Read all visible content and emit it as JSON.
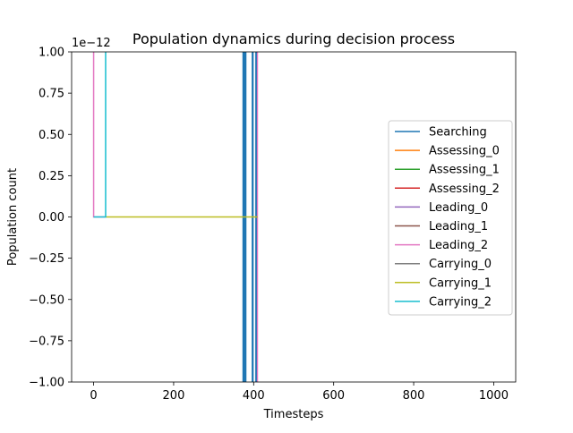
{
  "chart_data": {
    "type": "line",
    "title": "Population dynamics during decision process",
    "xlabel": "Timesteps",
    "ylabel": "Population count",
    "offset_label": "1e−12",
    "xlim": [
      -55,
      1055
    ],
    "ylim": [
      -1.0,
      1.0
    ],
    "xticks": [
      0,
      200,
      400,
      600,
      800,
      1000
    ],
    "xtick_labels": [
      "0",
      "200",
      "400",
      "600",
      "800",
      "1000"
    ],
    "yticks": [
      -1.0,
      -0.75,
      -0.5,
      -0.25,
      0.0,
      0.25,
      0.5,
      0.75,
      1.0
    ],
    "ytick_labels": [
      "−1.00",
      "−0.75",
      "−0.50",
      "−0.25",
      "0.00",
      "0.25",
      "0.50",
      "0.75",
      "1.00"
    ],
    "grid": false,
    "legend_position": "right",
    "series": [
      {
        "name": "Searching",
        "color": "#1f77b4",
        "lw": 2,
        "vspans": [
          [
            372,
            382
          ],
          [
            395,
            400
          ],
          [
            404,
            409
          ]
        ],
        "segments": []
      },
      {
        "name": "Assessing_0",
        "color": "#ff7f0e",
        "lw": 1.5,
        "vspans": [],
        "segments": []
      },
      {
        "name": "Assessing_1",
        "color": "#2ca02c",
        "lw": 1.5,
        "vspans": [],
        "segments": []
      },
      {
        "name": "Assessing_2",
        "color": "#d62728",
        "lw": 1.5,
        "vspans": [],
        "segments": []
      },
      {
        "name": "Leading_0",
        "color": "#9467bd",
        "lw": 1.5,
        "vspans": [],
        "segments": []
      },
      {
        "name": "Leading_1",
        "color": "#8c564b",
        "lw": 1.5,
        "vspans": [],
        "segments": []
      },
      {
        "name": "Leading_2",
        "color": "#e377c2",
        "lw": 1.5,
        "vspans": [
          [
            408,
            411
          ]
        ],
        "segments": [
          [
            [
              0,
              1.0
            ],
            [
              0,
              0.0
            ],
            [
              30,
              0.0
            ]
          ]
        ]
      },
      {
        "name": "Carrying_0",
        "color": "#7f7f7f",
        "lw": 1.5,
        "vspans": [],
        "segments": []
      },
      {
        "name": "Carrying_1",
        "color": "#bcbd22",
        "lw": 1.5,
        "vspans": [],
        "segments": [
          [
            [
              30,
              0.0
            ],
            [
              410,
              0.0
            ]
          ]
        ]
      },
      {
        "name": "Carrying_2",
        "color": "#17becf",
        "lw": 1.5,
        "vspans": [],
        "segments": [
          [
            [
              0,
              0.0
            ],
            [
              30,
              0.0
            ],
            [
              30,
              1.0
            ]
          ]
        ]
      }
    ]
  }
}
